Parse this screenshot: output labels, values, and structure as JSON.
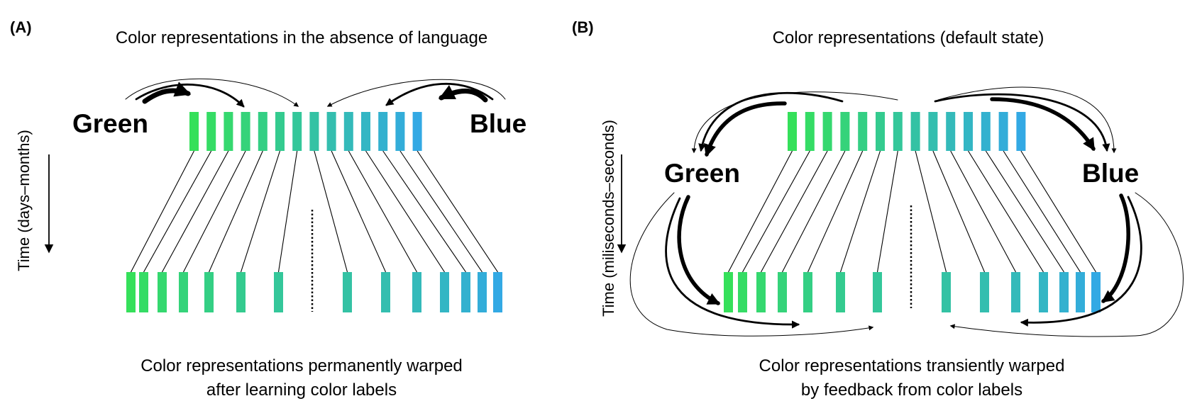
{
  "panel_a": {
    "label": "(A)",
    "title": "Color representations in the absence of language",
    "word_green": "Green",
    "word_blue": "Blue",
    "axis_label": "Time (days–months)",
    "caption_line1": "Color representations permanently warped",
    "caption_line2": "after learning color labels"
  },
  "panel_b": {
    "label": "(B)",
    "title": "Color representations (default state)",
    "word_green": "Green",
    "word_blue": "Blue",
    "axis_label": "Time (miliseconds–seconds)",
    "caption_line1": "Color representations transiently warped",
    "caption_line2": "by feedback from color labels"
  },
  "colors": {
    "green_end": "#35e05a",
    "blue_end": "#33a9e4",
    "ink": "#000000"
  }
}
